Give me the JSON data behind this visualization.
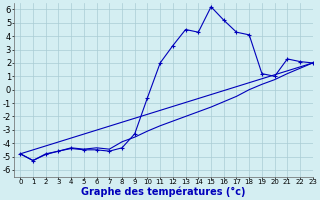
{
  "xlabel": "Graphe des températures (°c)",
  "xlim": [
    -0.5,
    23
  ],
  "ylim": [
    -6.5,
    6.5
  ],
  "xticks": [
    0,
    1,
    2,
    3,
    4,
    5,
    6,
    7,
    8,
    9,
    10,
    11,
    12,
    13,
    14,
    15,
    16,
    17,
    18,
    19,
    20,
    21,
    22,
    23
  ],
  "yticks": [
    -6,
    -5,
    -4,
    -3,
    -2,
    -1,
    0,
    1,
    2,
    3,
    4,
    5,
    6
  ],
  "bg_color": "#d4eef2",
  "line_color": "#0000bb",
  "grid_color": "#aaccd4",
  "line1_x": [
    0,
    1,
    2,
    3,
    4,
    5,
    6,
    7,
    8,
    9,
    10,
    11,
    12,
    13,
    14,
    15,
    16,
    17,
    18,
    19,
    20,
    21,
    22,
    23
  ],
  "line1_y": [
    -4.8,
    -5.3,
    -4.8,
    -4.6,
    -4.4,
    -4.5,
    -4.5,
    -4.6,
    -4.35,
    -3.3,
    -0.6,
    2.0,
    3.3,
    4.5,
    4.3,
    6.2,
    5.2,
    4.3,
    4.1,
    1.2,
    1.0,
    2.3,
    2.1,
    2.0
  ],
  "line2_x": [
    0,
    1,
    2,
    3,
    4,
    5,
    6,
    7,
    8,
    9,
    10,
    11,
    12,
    13,
    14,
    15,
    16,
    17,
    18,
    19,
    20,
    21,
    22,
    23
  ],
  "line2_y": [
    -4.8,
    -5.3,
    -4.85,
    -4.6,
    -4.35,
    -4.45,
    -4.35,
    -4.45,
    -3.9,
    -3.55,
    -3.1,
    -2.7,
    -2.35,
    -2.0,
    -1.65,
    -1.3,
    -0.9,
    -0.5,
    0.0,
    0.4,
    0.75,
    1.2,
    1.6,
    2.0
  ],
  "line3_x": [
    0,
    23
  ],
  "line3_y": [
    -4.8,
    2.0
  ],
  "xlabel_color": "#0000bb",
  "xlabel_fontsize": 7,
  "tick_fontsize": 5,
  "linewidth": 0.8,
  "marker": "+",
  "markersize": 3
}
